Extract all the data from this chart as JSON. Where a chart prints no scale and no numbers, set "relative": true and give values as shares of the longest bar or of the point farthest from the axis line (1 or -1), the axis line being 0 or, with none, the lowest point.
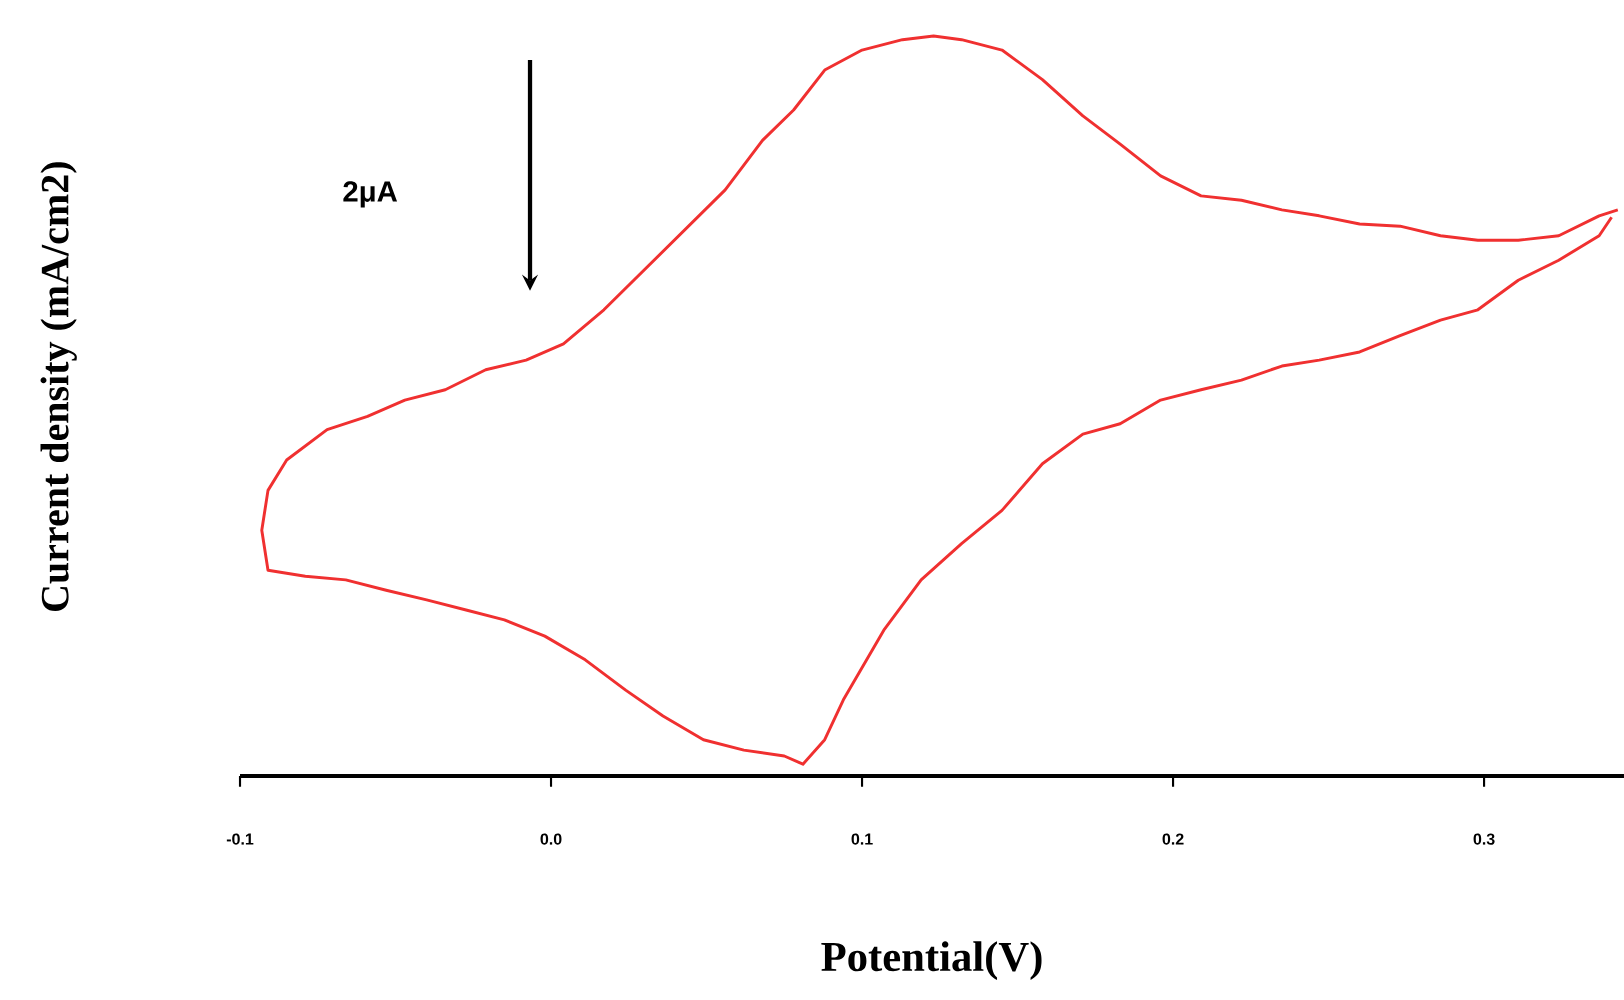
{
  "chart_data": {
    "type": "line",
    "relative": true,
    "tick_labels": "x",
    "xlabel": "Potential(V)",
    "ylabel": "Current density (mA/cm2)",
    "annotations": [
      "2μA"
    ],
    "xlim": [
      -0.1,
      0.345
    ],
    "xticks": [
      {
        "value": -0.1,
        "label": "-0.1"
      },
      {
        "value": 0.0,
        "label": "0.0"
      },
      {
        "value": 0.1,
        "label": "0.1"
      },
      {
        "value": 0.2,
        "label": "0.2"
      },
      {
        "value": 0.3,
        "label": "0.3"
      }
    ],
    "series": [
      {
        "color": "#f03030",
        "x": [
          0.343,
          0.337,
          0.324,
          0.311,
          0.298,
          0.286,
          0.273,
          0.26,
          0.247,
          0.235,
          0.222,
          0.209,
          0.196,
          0.183,
          0.171,
          0.158,
          0.145,
          0.132,
          0.123,
          0.113,
          0.1,
          0.088,
          0.078,
          0.068,
          0.056,
          0.043,
          0.03,
          0.017,
          0.004,
          -0.008,
          -0.021,
          -0.034,
          -0.047,
          -0.059,
          -0.072,
          -0.085,
          -0.091,
          -0.093,
          -0.091,
          -0.079,
          -0.066,
          -0.053,
          -0.04,
          -0.027,
          -0.015,
          -0.002,
          0.011,
          0.024,
          0.036,
          0.049,
          0.062,
          0.075,
          0.081,
          0.088,
          0.094,
          0.107,
          0.119,
          0.132,
          0.145,
          0.158,
          0.171,
          0.183,
          0.196,
          0.209,
          0.222,
          0.235,
          0.247,
          0.26,
          0.273,
          0.286,
          0.298,
          0.311,
          0.324,
          0.337,
          0.341
        ],
        "values": [
          0.765,
          0.757,
          0.73,
          0.724,
          0.724,
          0.73,
          0.743,
          0.746,
          0.757,
          0.765,
          0.778,
          0.784,
          0.811,
          0.854,
          0.892,
          0.941,
          0.981,
          0.995,
          1.0,
          0.995,
          0.981,
          0.954,
          0.9,
          0.859,
          0.792,
          0.738,
          0.684,
          0.63,
          0.584,
          0.562,
          0.549,
          0.522,
          0.508,
          0.486,
          0.468,
          0.427,
          0.386,
          0.332,
          0.278,
          0.27,
          0.265,
          0.251,
          0.238,
          0.224,
          0.211,
          0.189,
          0.157,
          0.116,
          0.081,
          0.049,
          0.035,
          0.027,
          0.016,
          0.049,
          0.103,
          0.197,
          0.265,
          0.314,
          0.359,
          0.422,
          0.462,
          0.476,
          0.508,
          0.522,
          0.535,
          0.554,
          0.562,
          0.573,
          0.595,
          0.616,
          0.63,
          0.67,
          0.697,
          0.73,
          0.755
        ]
      }
    ]
  }
}
